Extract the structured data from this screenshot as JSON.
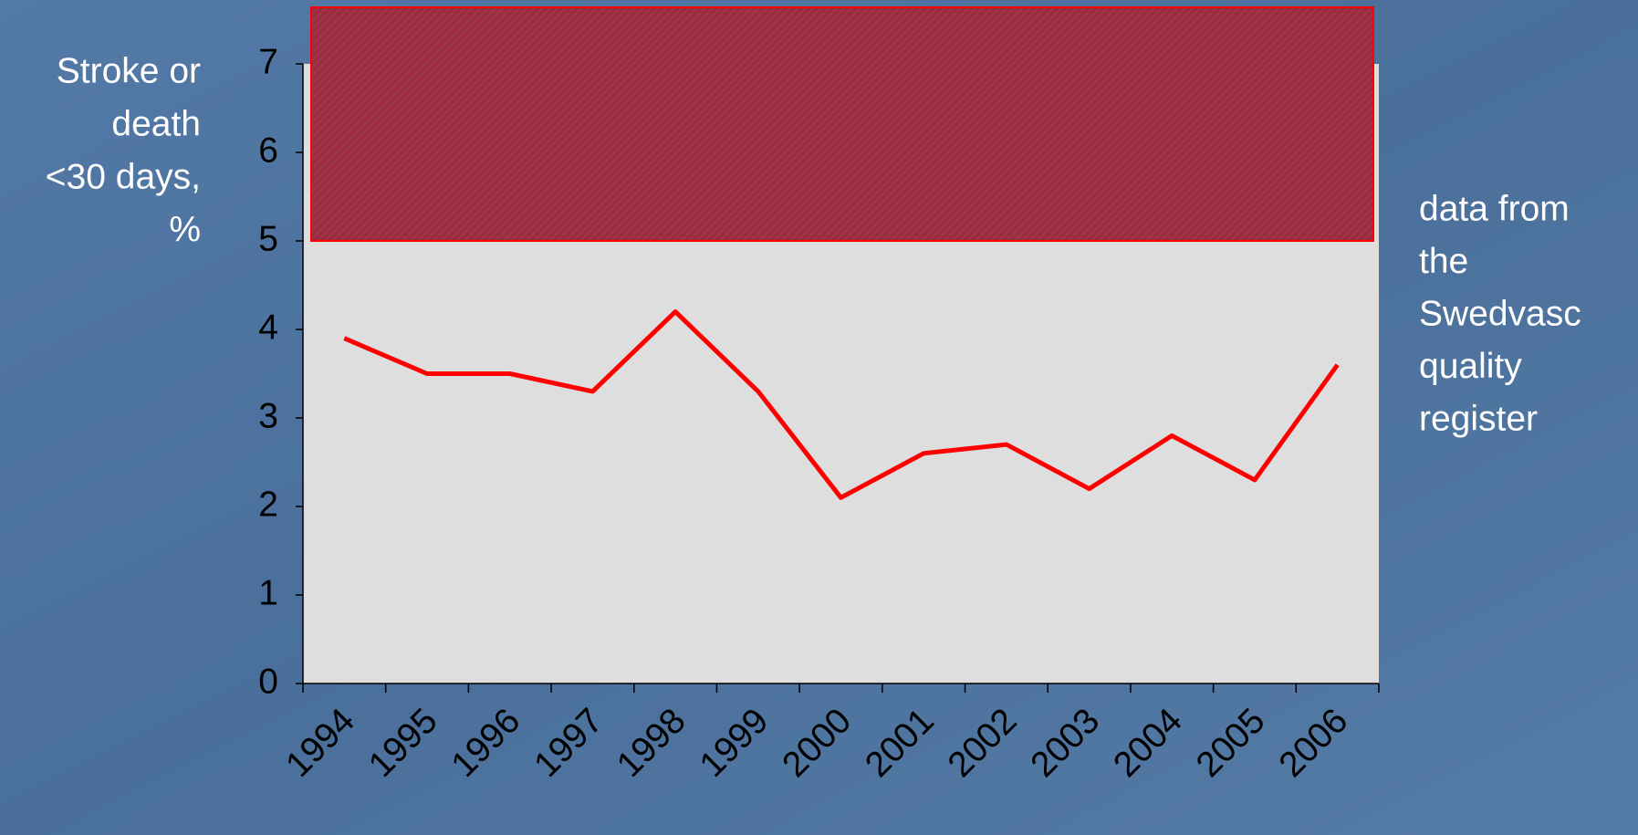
{
  "chart_data": {
    "type": "line",
    "y_label_lines": [
      "Stroke or",
      "death",
      "<30 days,",
      "%"
    ],
    "annotation_lines": [
      "data from",
      "the",
      "Swedvasc",
      "quality",
      "register"
    ],
    "categories": [
      "1994",
      "1995",
      "1996",
      "1997",
      "1998",
      "1999",
      "2000",
      "2001",
      "2002",
      "2003",
      "2004",
      "2005",
      "2006"
    ],
    "values": [
      3.9,
      3.5,
      3.5,
      3.3,
      4.2,
      3.3,
      2.1,
      2.6,
      2.7,
      2.2,
      2.8,
      2.3,
      3.6
    ],
    "color": "#ff0000",
    "band_from": 5,
    "band_color": "#a0283c",
    "ylim": [
      0,
      7
    ],
    "yticks": [
      0,
      1,
      2,
      3,
      4,
      5,
      6,
      7
    ]
  }
}
